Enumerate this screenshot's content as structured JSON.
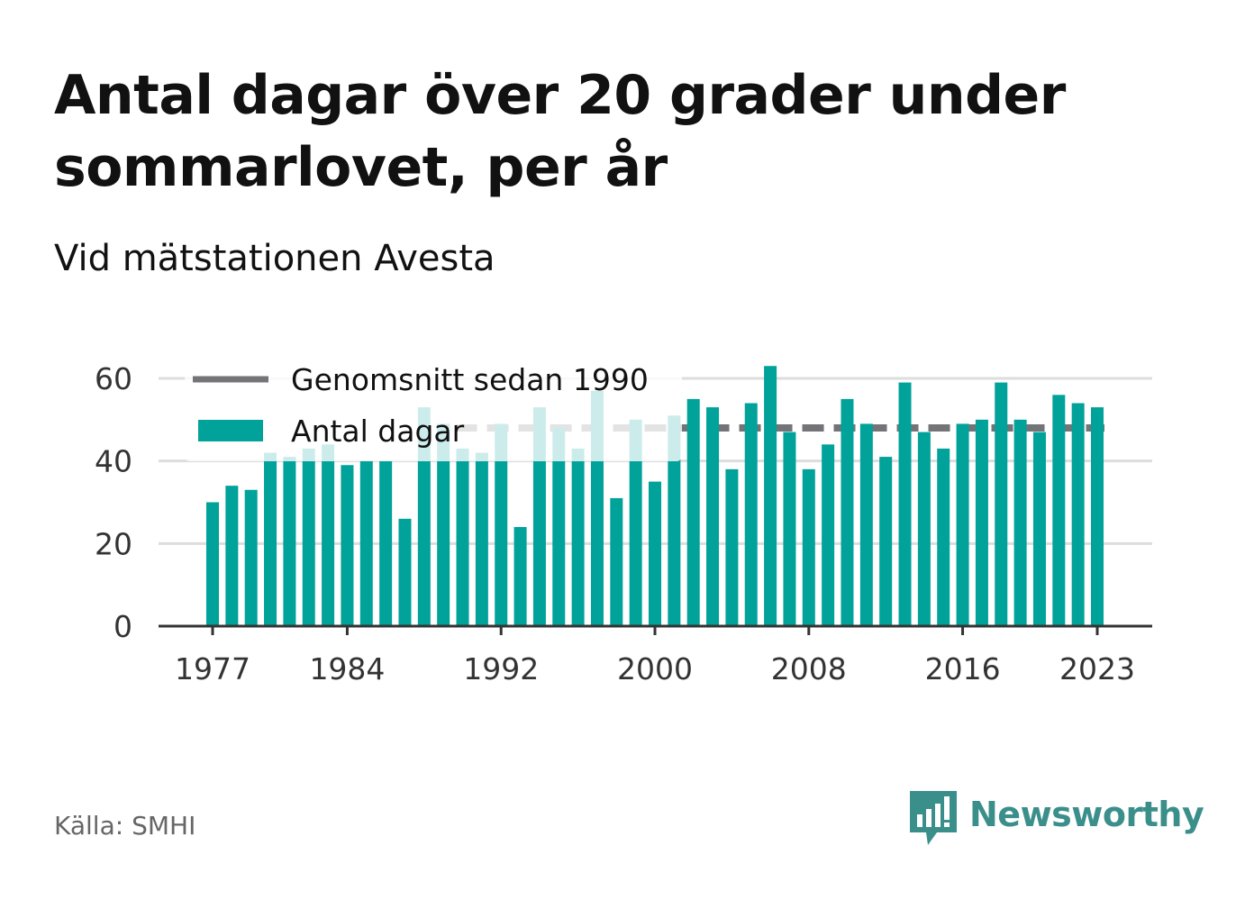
{
  "title": "Antal dagar över 20 grader under sommarlovet, per år",
  "subtitle": "Vid mätstationen Avesta",
  "source": "Källa: SMHI",
  "brand": "Newsworthy",
  "colors": {
    "bar": "#00a29a",
    "average_line": "#747478",
    "grid": "#dddddd",
    "axis": "#333333",
    "brand": "#3b8f8b"
  },
  "chart_data": {
    "type": "bar",
    "title": "Antal dagar över 20 grader under sommarlovet, per år",
    "subtitle": "Vid mätstationen Avesta",
    "xlabel": "",
    "ylabel": "",
    "ylim": [
      0,
      60
    ],
    "yticks": [
      "0",
      "20",
      "40",
      "60"
    ],
    "xticks": [
      "1977",
      "1984",
      "1992",
      "2000",
      "2008",
      "2016",
      "2023"
    ],
    "grid": "horizontal",
    "legend_position": "top-left",
    "categories": [
      1977,
      1978,
      1979,
      1980,
      1981,
      1982,
      1983,
      1984,
      1985,
      1986,
      1987,
      1988,
      1989,
      1990,
      1991,
      1992,
      1993,
      1994,
      1995,
      1996,
      1997,
      1998,
      1999,
      2000,
      2001,
      2002,
      2003,
      2004,
      2005,
      2006,
      2007,
      2008,
      2009,
      2010,
      2011,
      2012,
      2013,
      2014,
      2015,
      2016,
      2017,
      2018,
      2019,
      2020,
      2021,
      2022,
      2023
    ],
    "series": [
      {
        "name": "Antal dagar",
        "type": "bar",
        "values": [
          30,
          34,
          33,
          42,
          41,
          43,
          44,
          39,
          40,
          40,
          26,
          53,
          49,
          43,
          42,
          49,
          24,
          53,
          48,
          43,
          57,
          31,
          50,
          35,
          51,
          55,
          53,
          38,
          54,
          63,
          47,
          38,
          44,
          55,
          49,
          41,
          59,
          47,
          43,
          49,
          50,
          59,
          50,
          47,
          56,
          54,
          53
        ]
      },
      {
        "name": "Genomsnitt sedan 1990",
        "type": "line",
        "style": "dashed",
        "x_range": [
          1990,
          2023
        ],
        "value": 48
      }
    ]
  }
}
